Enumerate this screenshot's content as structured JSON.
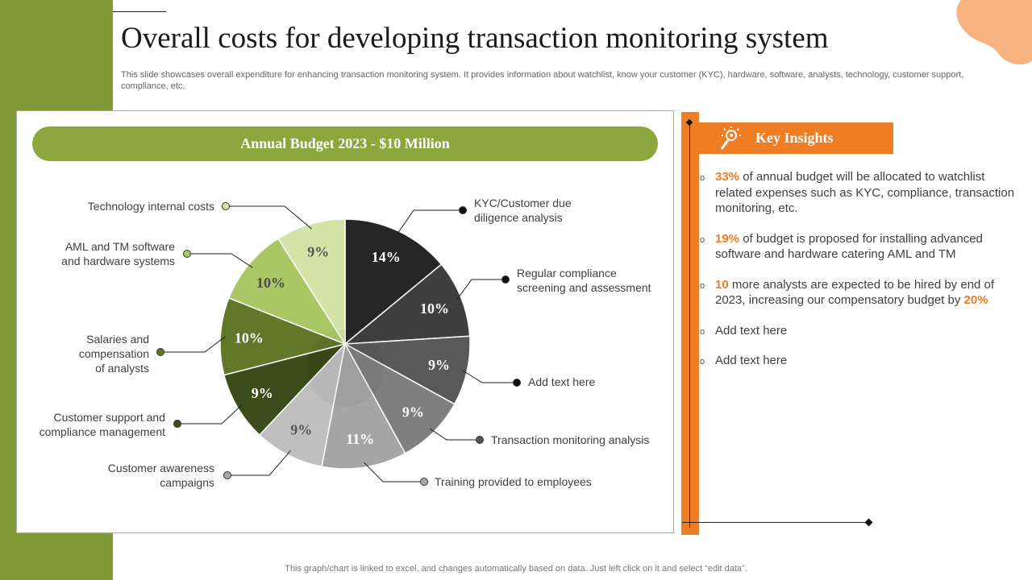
{
  "title": "Overall costs for developing transaction monitoring system",
  "subtitle": "This slide showcases overall expenditure for enhancing transaction monitoring system. It provides information about watchlist, know your customer (KYC), hardware, software, analysts, technology, customer support, compliance, etc.",
  "budget_label": "Annual Budget 2023 - $10 Million",
  "chart_data": {
    "type": "pie",
    "title": "Annual Budget 2023 - $10 Million",
    "unit": "%",
    "slices": [
      {
        "label": "KYC/Customer due diligence analysis",
        "value": 14,
        "color": "#262626"
      },
      {
        "label": "Regular compliance screening and assessment",
        "value": 10,
        "color": "#3f3f3f"
      },
      {
        "label": "Add text here",
        "value": 9,
        "color": "#595959"
      },
      {
        "label": "Transaction monitoring analysis",
        "value": 9,
        "color": "#7f7f7f"
      },
      {
        "label": "Training provided to employees",
        "value": 11,
        "color": "#a6a6a6"
      },
      {
        "label": "Customer awareness campaigns",
        "value": 9,
        "color": "#bfbfbf"
      },
      {
        "label": "Customer support and compliance management",
        "value": 9,
        "color": "#3b4d1a"
      },
      {
        "label": "Salaries and compensation of analysts",
        "value": 10,
        "color": "#5f782a"
      },
      {
        "label": "AML and TM software and hardware systems",
        "value": 10,
        "color": "#a9c865"
      },
      {
        "label": "Technology internal costs",
        "value": 9,
        "color": "#d4e3a6"
      }
    ]
  },
  "callout_labels": [
    "KYC/Customer due\ndiligence analysis",
    "Regular compliance\nscreening and assessment",
    "Add text here",
    "Transaction monitoring analysis",
    "Training provided to employees",
    "Customer awareness\ncampaigns",
    "Customer support and\ncompliance management",
    "Salaries and\ncompensation\nof analysts",
    "AML and TM software\nand hardware systems",
    "Technology internal costs"
  ],
  "insights": {
    "header": "Key Insights",
    "items": [
      {
        "highlight": "33%",
        "text": " of annual budget will be allocated to watchlist related expenses such as KYC, compliance, transaction monitoring, etc.",
        "highlight2": ""
      },
      {
        "highlight": "19%",
        "text": " of budget is proposed for installing advanced software and hardware catering AML and TM",
        "highlight2": ""
      },
      {
        "highlight": "10",
        "text": " more analysts are expected to be hired by end of 2023, increasing our compensatory budget by ",
        "highlight2": "20%"
      },
      {
        "highlight": "",
        "text": "Add text here",
        "highlight2": ""
      },
      {
        "highlight": "",
        "text": "Add text here",
        "highlight2": ""
      }
    ]
  },
  "footer": "This graph/chart is linked to excel,  and changes automatically based on data. Just left click on it and select “edit data”.",
  "colors": {
    "green_bar": "#7f9a37",
    "orange": "#ee7d24",
    "pill": "#8aa83d",
    "blob": "#f6b27f"
  }
}
